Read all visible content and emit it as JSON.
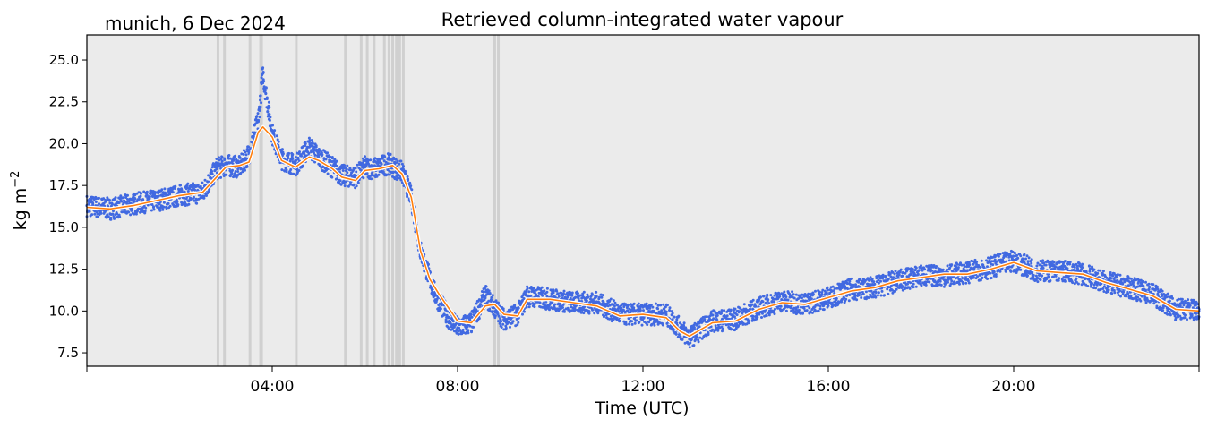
{
  "chart_data": {
    "type": "scatter",
    "title": "Retrieved column-integrated water vapour",
    "location_date": "munich, 6 Dec 2024",
    "xlabel": "Time (UTC)",
    "ylabel_base": "kg m",
    "ylabel_exp": "−2",
    "x_unit": "hours UTC",
    "xlim": [
      0,
      24
    ],
    "ylim": [
      6.7,
      26.5
    ],
    "x_ticks": [
      {
        "value": 4,
        "label": "04:00"
      },
      {
        "value": 8,
        "label": "08:00"
      },
      {
        "value": 12,
        "label": "12:00"
      },
      {
        "value": 16,
        "label": "16:00"
      },
      {
        "value": 20,
        "label": "20:00"
      }
    ],
    "y_ticks": [
      {
        "value": 7.5,
        "label": "7.5"
      },
      {
        "value": 10.0,
        "label": "10.0"
      },
      {
        "value": 12.5,
        "label": "12.5"
      },
      {
        "value": 15.0,
        "label": "15.0"
      },
      {
        "value": 17.5,
        "label": "17.5"
      },
      {
        "value": 20.0,
        "label": "20.0"
      },
      {
        "value": 22.5,
        "label": "22.5"
      },
      {
        "value": 25.0,
        "label": "25.0"
      }
    ],
    "grid": false,
    "legend": "none",
    "colors": {
      "plot_background": "#ebebeb",
      "raw_points": "#4169e1",
      "smoothed_line_outer": "#ff7f0e",
      "smoothed_line_inner": "#ffffff",
      "flag_bands": "#d0d0d0"
    },
    "series": [
      {
        "kind": "raw_scatter",
        "x": [
          0.0,
          0.5,
          1.0,
          1.5,
          2.0,
          2.5,
          2.8,
          3.0,
          3.3,
          3.5,
          3.7,
          3.8,
          4.0,
          4.2,
          4.5,
          4.8,
          5.0,
          5.3,
          5.5,
          5.8,
          6.0,
          6.2,
          6.5,
          6.8,
          7.0,
          7.2,
          7.5,
          7.8,
          8.0,
          8.3,
          8.6,
          8.8,
          9.0,
          9.3,
          9.5,
          10.0,
          10.5,
          11.0,
          11.5,
          12.0,
          12.5,
          13.0,
          13.5,
          14.0,
          14.5,
          15.0,
          15.5,
          16.0,
          16.5,
          17.0,
          17.5,
          18.0,
          18.5,
          19.0,
          19.5,
          20.0,
          20.5,
          21.0,
          21.5,
          22.0,
          22.5,
          23.0,
          23.5,
          24.0
        ],
        "y": [
          16.3,
          16.1,
          16.4,
          16.6,
          16.9,
          17.1,
          18.5,
          18.7,
          18.6,
          19.4,
          21.4,
          24.2,
          20.6,
          19.1,
          18.7,
          19.8,
          19.2,
          18.6,
          18.1,
          18.0,
          18.6,
          18.5,
          18.8,
          18.3,
          16.8,
          13.6,
          11.1,
          9.6,
          9.0,
          9.3,
          10.9,
          10.2,
          9.5,
          9.8,
          10.9,
          10.7,
          10.5,
          10.5,
          9.8,
          9.8,
          9.8,
          8.4,
          9.4,
          9.5,
          10.2,
          10.6,
          10.4,
          10.8,
          11.3,
          11.4,
          11.8,
          12.1,
          12.1,
          12.3,
          12.6,
          13.0,
          12.4,
          12.4,
          12.2,
          11.7,
          11.4,
          11.0,
          10.1,
          10.1
        ]
      },
      {
        "kind": "smoothed_line",
        "x": [
          0.0,
          0.5,
          1.0,
          1.5,
          2.0,
          2.5,
          2.7,
          3.0,
          3.3,
          3.5,
          3.7,
          3.8,
          4.0,
          4.2,
          4.5,
          4.8,
          5.0,
          5.3,
          5.5,
          5.8,
          6.0,
          6.3,
          6.6,
          6.8,
          7.0,
          7.2,
          7.4,
          7.6,
          7.8,
          8.0,
          8.3,
          8.6,
          8.8,
          9.0,
          9.3,
          9.5,
          10.0,
          10.5,
          11.0,
          11.5,
          12.0,
          12.5,
          12.8,
          13.0,
          13.5,
          14.0,
          14.5,
          15.0,
          15.5,
          16.0,
          16.5,
          17.0,
          17.5,
          18.0,
          18.5,
          19.0,
          19.5,
          20.0,
          20.5,
          21.0,
          21.5,
          22.0,
          22.5,
          23.0,
          23.5,
          24.0
        ],
        "y": [
          16.2,
          16.1,
          16.3,
          16.6,
          16.9,
          17.1,
          17.7,
          18.6,
          18.7,
          18.9,
          20.7,
          21.0,
          20.4,
          19.0,
          18.6,
          19.2,
          19.0,
          18.5,
          18.0,
          17.8,
          18.4,
          18.5,
          18.7,
          18.2,
          16.8,
          13.6,
          11.9,
          11.0,
          10.2,
          9.4,
          9.3,
          10.3,
          10.4,
          9.8,
          9.7,
          10.7,
          10.7,
          10.5,
          10.3,
          9.7,
          9.8,
          9.6,
          8.8,
          8.5,
          9.3,
          9.4,
          10.1,
          10.5,
          10.4,
          10.8,
          11.2,
          11.4,
          11.8,
          12.0,
          12.2,
          12.2,
          12.5,
          12.9,
          12.4,
          12.3,
          12.2,
          11.7,
          11.3,
          10.9,
          10.1,
          10.0
        ]
      }
    ],
    "flag_bands_x": [
      2.83,
      2.97,
      3.52,
      3.75,
      3.77,
      4.52,
      5.58,
      5.92,
      6.05,
      6.2,
      6.42,
      6.52,
      6.6,
      6.68,
      6.75,
      6.83,
      8.8,
      8.88
    ]
  }
}
